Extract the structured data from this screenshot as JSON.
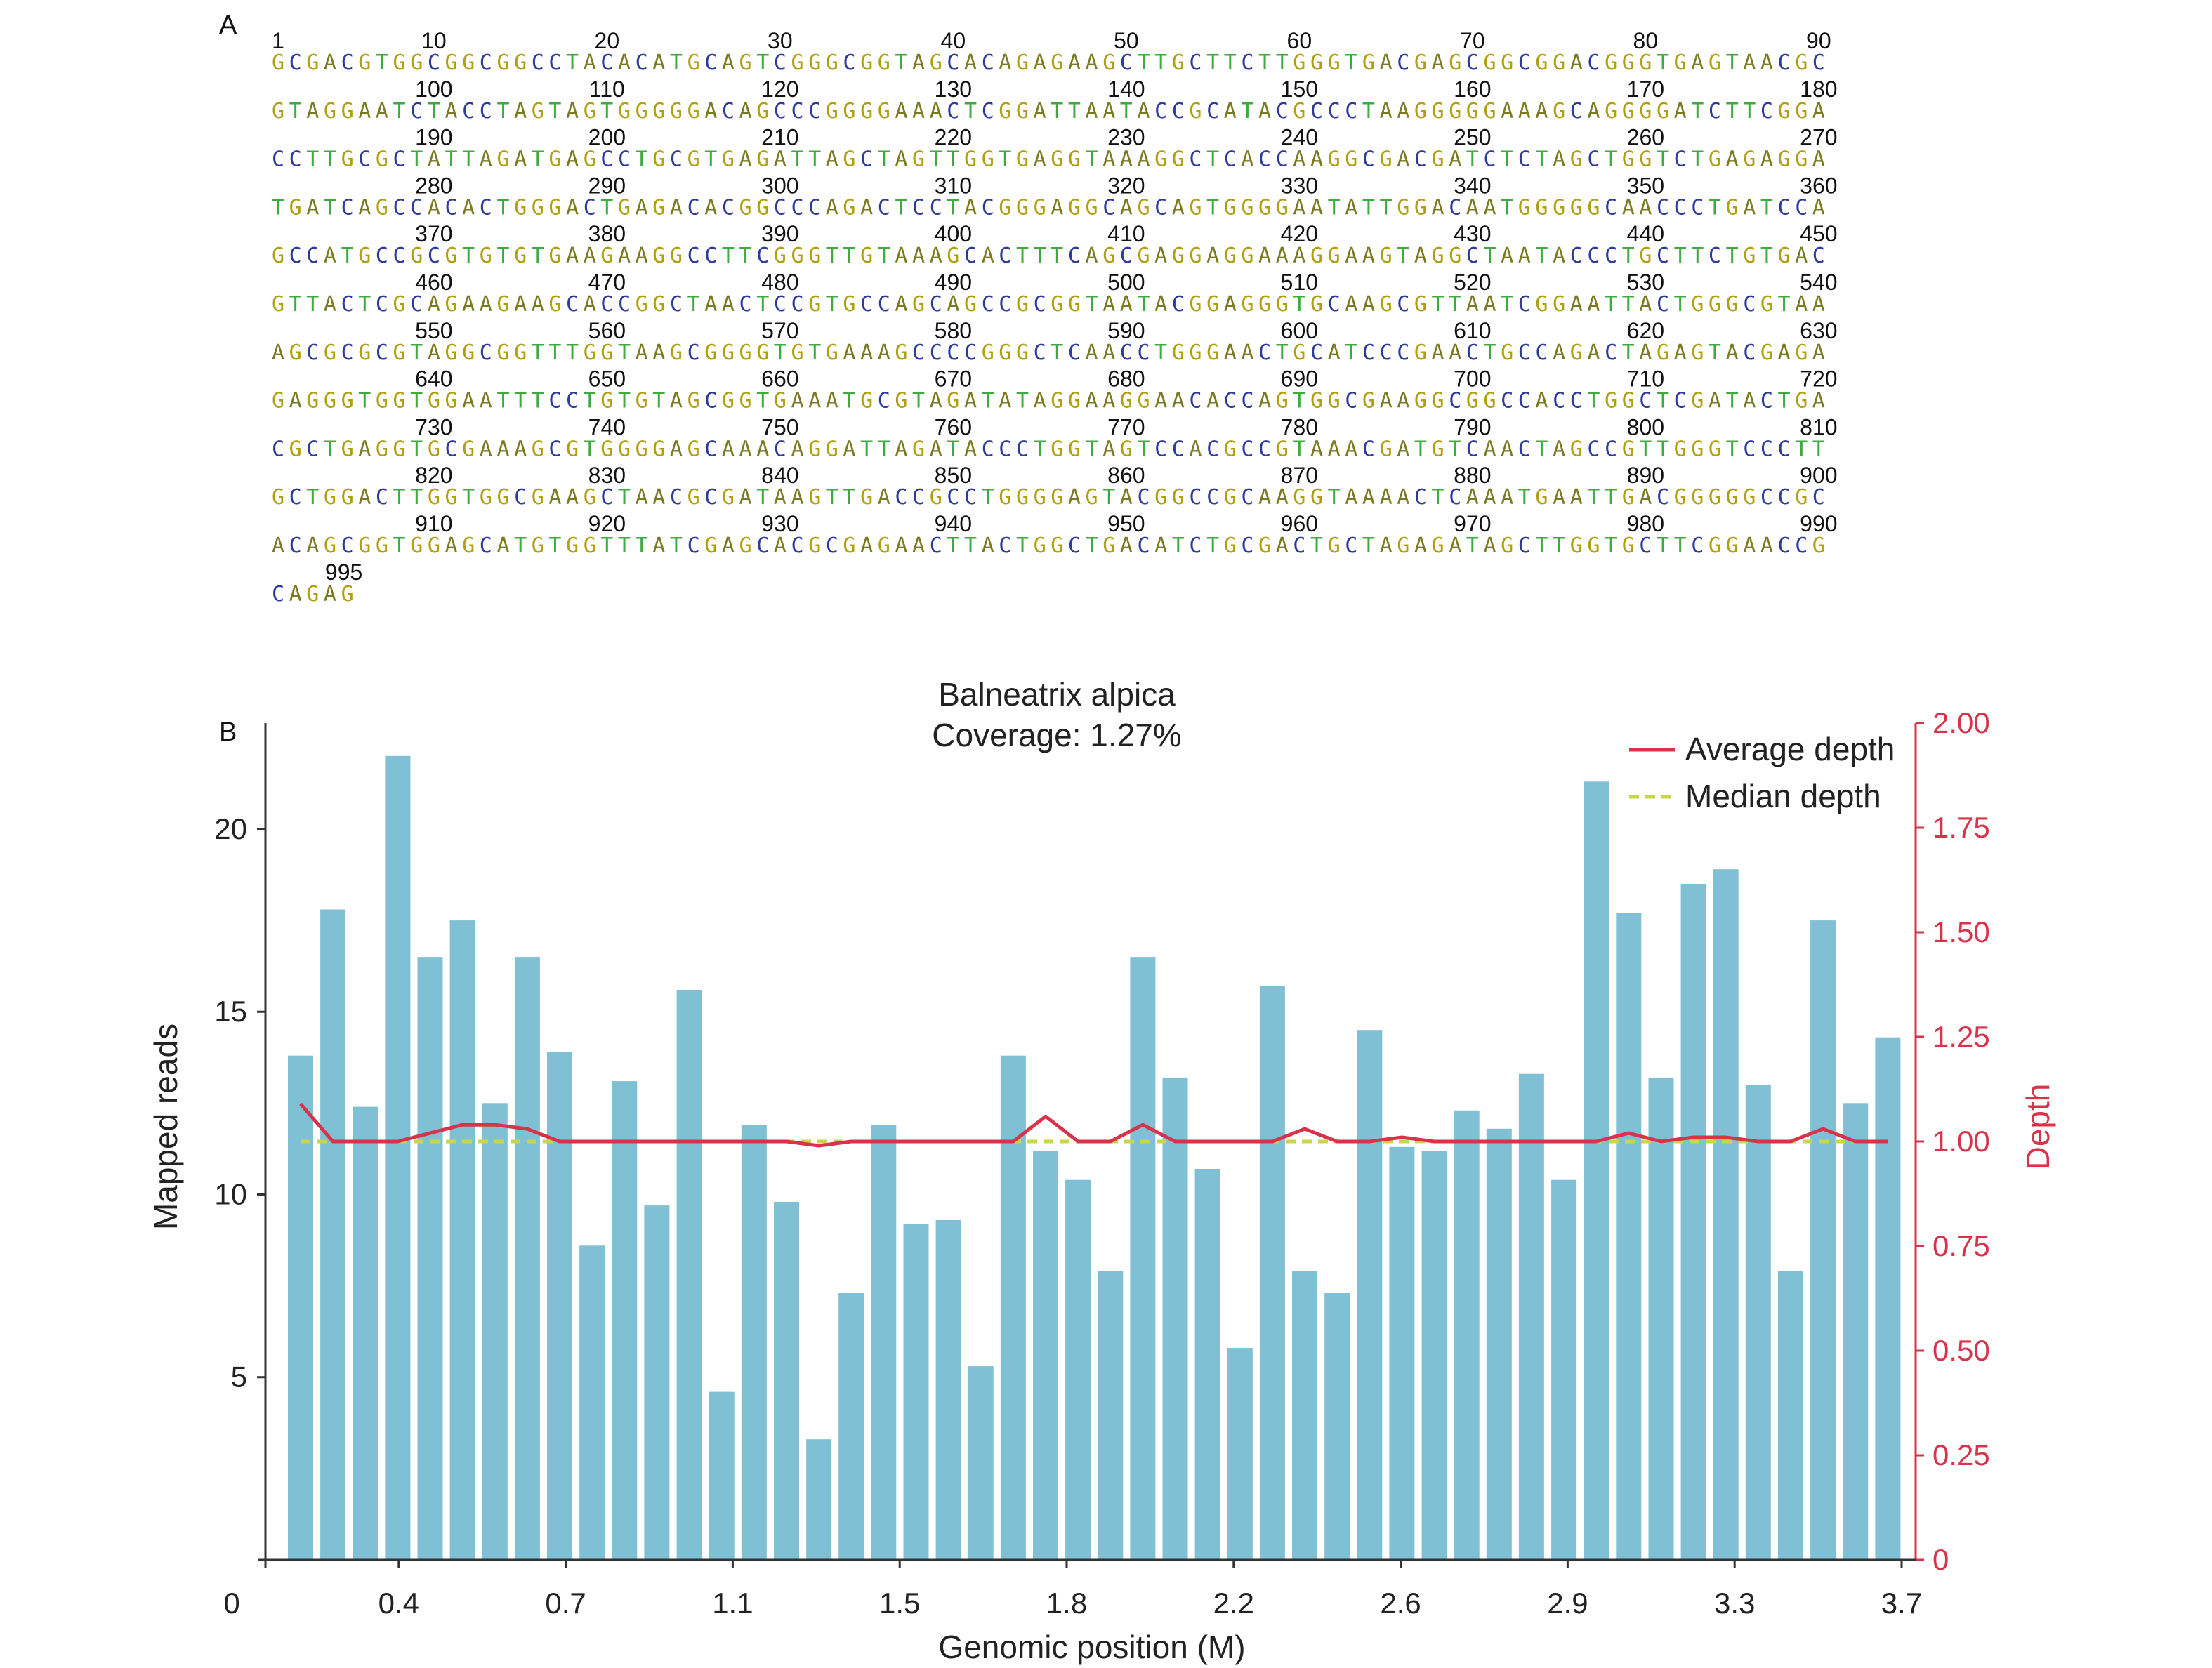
{
  "panel_a": {
    "label": "A",
    "start_label": "1",
    "end_label": "995",
    "colors": {
      "A": "#7a7a22",
      "C": "#2e3a9c",
      "G": "#b0a010",
      "T": "#3faa3f",
      "label": "#111111"
    },
    "rows": [
      "GCGACGTGGCGGCGGCCTACACATGCAGTCGGGCGGTAGCACAGAGAAGCTTGCTTCTTGGGTGACGAGCGGCGGACGGGTGAGTAACGC",
      "GTAGGAATCTACCTAGTAGTGGGGGACAGCCCGGGGAAACTCGGATTAATACCGCATACGCCCTAAGGGGGAAAGCAGGGGATCTTCGGA",
      "CCTTGCGCTATTAGATGAGCCTGCGTGAGATTAGCTAGTTGGTGAGGTAAAGGCTCACCAAGGCGACGATCTCTAGCTGGTCTGAGAGGA",
      "TGATCAGCCACACTGGGACTGAGACACGGCCCAGACTCCTACGGGAGGCAGCAGTGGGGAATATTGGACAATGGGGGCAACCCTGATCCA",
      "GCCATGCCGCGTGTGTGAAGAAGGCCTTCGGGTTGTAAAGCACTTTCAGCGAGGAGGAAAGGAAGTAGGCTAATACCCTGCTTCTGTGAC",
      "GTTACTCGCAGAAGAAGCACCGGCTAACTCCGTGCCAGCAGCCGCGGTAATACGGAGGGTGCAAGCGTTAATCGGAATTACTGGGCGTAA",
      "AGCGCGCGTAGGCGGTTTGGTAAGCGGGGTGTGAAAGCCCCGGGCTCAACCTGGGAACTGCATCCCGAACTGCCAGACTAGAGTACGAGA",
      "GAGGGTGGTGGAATTTCCTGTGTAGCGGTGAAATGCGTAGATATAGGAAGGAACACCAGTGGCGAAGGCGGCCACCTGGCTCGATACTGA",
      "CGCTGAGGTGCGAAAGCGTGGGGAGCAAACAGGATTAGATACCCTGGTAGTCCACGCCGTAAACGATGTCAACTAGCCGTTGGGTCCCTT",
      "GCTGGACTTGGTGGCGAAGCTAACGCGATAAGTTGACCGCCTGGGGAGTACGGCCGCAAGGTAAAACTCAAATGAATTGACGGGGGCCGC",
      "ACAGCGGTGGAGCATGTGGTTTATCGAGCACGCGAGAACTTACTGGCTGACATCTGCGACTGCTAGAGATAGCTTGGTGCTTCGGAACCG",
      "CAGAG"
    ],
    "position_labels": [
      [
        "10",
        "20",
        "30",
        "40",
        "50",
        "60",
        "70",
        "80",
        "90"
      ],
      [
        "100",
        "110",
        "120",
        "130",
        "140",
        "150",
        "160",
        "170",
        "180"
      ],
      [
        "190",
        "200",
        "210",
        "220",
        "230",
        "240",
        "250",
        "260",
        "270"
      ],
      [
        "280",
        "290",
        "300",
        "310",
        "320",
        "330",
        "340",
        "350",
        "360"
      ],
      [
        "370",
        "380",
        "390",
        "400",
        "410",
        "420",
        "430",
        "440",
        "450"
      ],
      [
        "460",
        "470",
        "480",
        "490",
        "500",
        "510",
        "520",
        "530",
        "540"
      ],
      [
        "550",
        "560",
        "570",
        "580",
        "590",
        "600",
        "610",
        "620",
        "630"
      ],
      [
        "640",
        "650",
        "660",
        "670",
        "680",
        "690",
        "700",
        "710",
        "720"
      ],
      [
        "730",
        "740",
        "750",
        "760",
        "770",
        "780",
        "790",
        "800",
        "810"
      ],
      [
        "820",
        "830",
        "840",
        "850",
        "860",
        "870",
        "880",
        "890",
        "900"
      ],
      [
        "910",
        "920",
        "930",
        "940",
        "950",
        "960",
        "970",
        "980",
        "990"
      ]
    ]
  },
  "chart_data": {
    "type": "bar",
    "panel_label": "B",
    "title": "Balneatrix alpica",
    "subtitle": "Coverage: 1.27%",
    "xlabel": "Genomic position (M)",
    "ylabel": "Mapped reads",
    "y2label": "Depth",
    "x_ticks": [
      "0",
      "0.4",
      "0.7",
      "1.1",
      "1.5",
      "1.8",
      "2.2",
      "2.6",
      "2.9",
      "3.3",
      "3.7"
    ],
    "y_ticks": [
      "5",
      "10",
      "15",
      "20"
    ],
    "y_tick_values": [
      5,
      10,
      15,
      20
    ],
    "ylim": [
      0,
      22.9
    ],
    "y2_ticks": [
      "0",
      "0.25",
      "0.50",
      "0.75",
      "1.00",
      "1.25",
      "1.50",
      "1.75",
      "2.00"
    ],
    "y2_tick_values": [
      0,
      0.25,
      0.5,
      0.75,
      1.0,
      1.25,
      1.5,
      1.75,
      2.0
    ],
    "y2lim": [
      0,
      2.0
    ],
    "grid": false,
    "legend_position": "top-right",
    "bar_color": "#7fc0d5",
    "values": [
      13.8,
      17.8,
      12.4,
      22.0,
      16.5,
      17.5,
      12.5,
      16.5,
      13.9,
      8.6,
      13.1,
      9.7,
      15.6,
      4.6,
      11.9,
      9.8,
      3.3,
      7.3,
      11.9,
      9.2,
      9.3,
      5.3,
      13.8,
      11.2,
      10.4,
      7.9,
      16.5,
      13.2,
      10.7,
      5.8,
      15.7,
      7.9,
      7.3,
      14.5,
      11.3,
      11.2,
      12.3,
      11.8,
      13.3,
      10.4,
      21.3,
      17.7,
      13.2,
      18.5,
      18.9,
      13.0,
      7.9,
      17.5,
      12.5,
      14.3
    ],
    "series": [
      {
        "name": "Average depth",
        "color": "#d8334a",
        "values": [
          1.09,
          1.0,
          1.0,
          1.0,
          1.02,
          1.04,
          1.04,
          1.03,
          1.0,
          1.0,
          1.0,
          1.0,
          1.0,
          1.0,
          1.0,
          1.0,
          0.99,
          1.0,
          1.0,
          1.0,
          1.0,
          1.0,
          1.0,
          1.06,
          1.0,
          1.0,
          1.04,
          1.0,
          1.0,
          1.0,
          1.0,
          1.03,
          1.0,
          1.0,
          1.01,
          1.0,
          1.0,
          1.0,
          1.0,
          1.0,
          1.0,
          1.02,
          1.0,
          1.01,
          1.01,
          1.0,
          1.0,
          1.03,
          1.0,
          1.0
        ]
      },
      {
        "name": "Median depth",
        "color": "#c8d64a",
        "values": [
          1.0,
          1.0,
          1.0,
          1.0,
          1.0,
          1.0,
          1.0,
          1.0,
          1.0,
          1.0,
          1.0,
          1.0,
          1.0,
          1.0,
          1.0,
          1.0,
          1.0,
          1.0,
          1.0,
          1.0,
          1.0,
          1.0,
          1.0,
          1.0,
          1.0,
          1.0,
          1.0,
          1.0,
          1.0,
          1.0,
          1.0,
          1.0,
          1.0,
          1.0,
          1.0,
          1.0,
          1.0,
          1.0,
          1.0,
          1.0,
          1.0,
          1.0,
          1.0,
          1.0,
          1.0,
          1.0,
          1.0,
          1.0,
          1.0,
          1.0
        ]
      }
    ]
  }
}
